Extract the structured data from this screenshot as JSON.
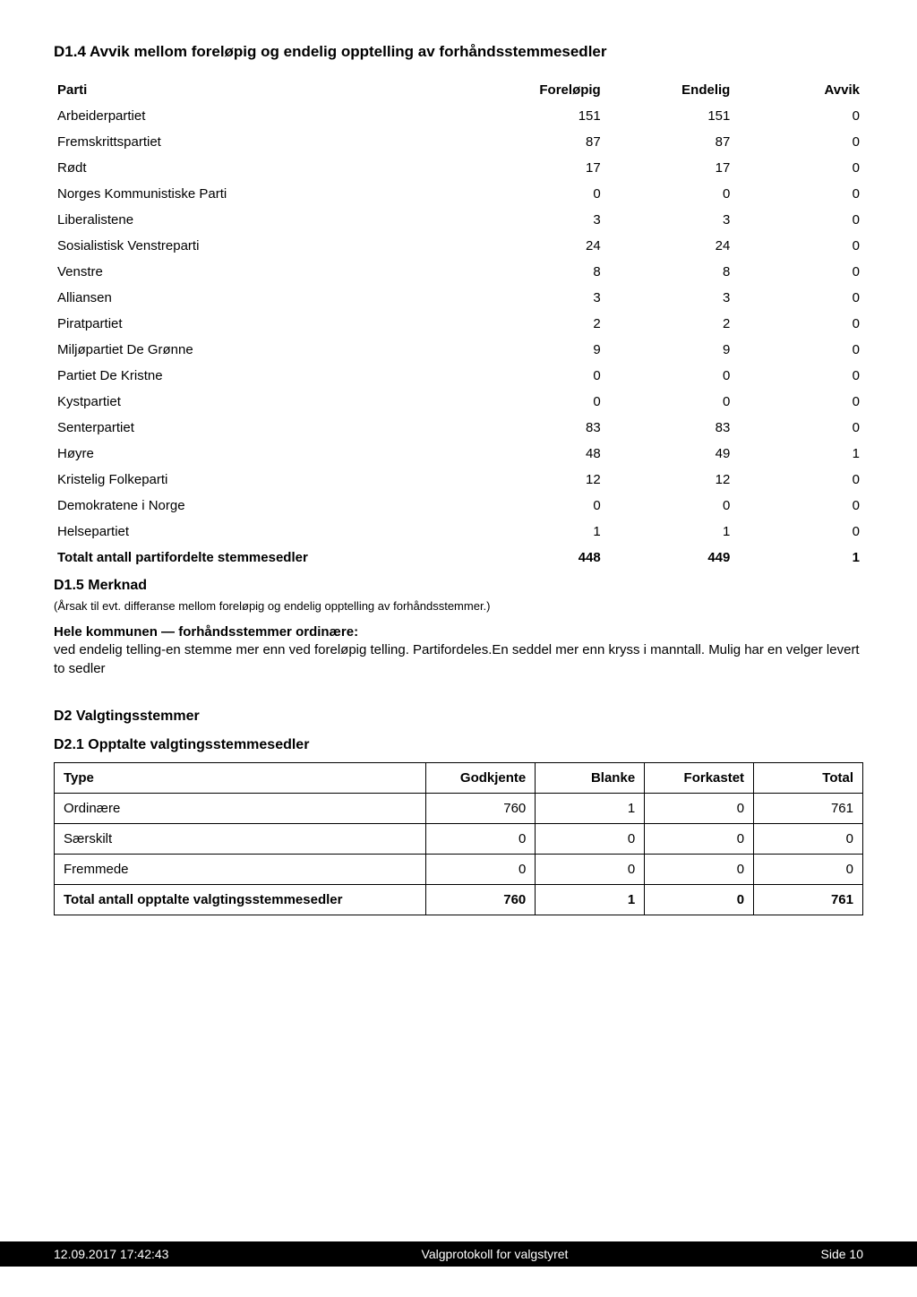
{
  "section_d14": {
    "title": "D1.4 Avvik mellom foreløpig og endelig opptelling av forhåndsstemmesedler",
    "columns": [
      "Parti",
      "Foreløpig",
      "Endelig",
      "Avvik"
    ],
    "rows": [
      {
        "party": "Arbeiderpartiet",
        "forelopig": "151",
        "endelig": "151",
        "avvik": "0"
      },
      {
        "party": "Fremskrittspartiet",
        "forelopig": "87",
        "endelig": "87",
        "avvik": "0"
      },
      {
        "party": "Rødt",
        "forelopig": "17",
        "endelig": "17",
        "avvik": "0"
      },
      {
        "party": "Norges Kommunistiske Parti",
        "forelopig": "0",
        "endelig": "0",
        "avvik": "0"
      },
      {
        "party": "Liberalistene",
        "forelopig": "3",
        "endelig": "3",
        "avvik": "0"
      },
      {
        "party": "Sosialistisk Venstreparti",
        "forelopig": "24",
        "endelig": "24",
        "avvik": "0"
      },
      {
        "party": "Venstre",
        "forelopig": "8",
        "endelig": "8",
        "avvik": "0"
      },
      {
        "party": "Alliansen",
        "forelopig": "3",
        "endelig": "3",
        "avvik": "0"
      },
      {
        "party": "Piratpartiet",
        "forelopig": "2",
        "endelig": "2",
        "avvik": "0"
      },
      {
        "party": "Miljøpartiet De Grønne",
        "forelopig": "9",
        "endelig": "9",
        "avvik": "0"
      },
      {
        "party": "Partiet De Kristne",
        "forelopig": "0",
        "endelig": "0",
        "avvik": "0"
      },
      {
        "party": "Kystpartiet",
        "forelopig": "0",
        "endelig": "0",
        "avvik": "0"
      },
      {
        "party": "Senterpartiet",
        "forelopig": "83",
        "endelig": "83",
        "avvik": "0"
      },
      {
        "party": "Høyre",
        "forelopig": "48",
        "endelig": "49",
        "avvik": "1"
      },
      {
        "party": "Kristelig Folkeparti",
        "forelopig": "12",
        "endelig": "12",
        "avvik": "0"
      },
      {
        "party": "Demokratene i Norge",
        "forelopig": "0",
        "endelig": "0",
        "avvik": "0"
      },
      {
        "party": "Helsepartiet",
        "forelopig": "1",
        "endelig": "1",
        "avvik": "0"
      }
    ],
    "total": {
      "label": "Totalt antall partifordelte stemmesedler",
      "forelopig": "448",
      "endelig": "449",
      "avvik": "1"
    }
  },
  "section_d15": {
    "title": "D1.5 Merknad",
    "note": "(Årsak til evt. differanse mellom foreløpig og endelig opptelling av forhåndsstemmer.)",
    "body_strong": "Hele kommunen — forhåndsstemmer ordinære:",
    "body_rest": "ved endelig telling-en stemme mer enn ved foreløpig telling. Partifordeles.En seddel mer enn kryss i manntall. Mulig har en velger levert to sedler"
  },
  "section_d2": {
    "title": "D2 Valgtingsstemmer"
  },
  "section_d21": {
    "title": "D2.1 Opptalte valgtingsstemmesedler",
    "columns": [
      "Type",
      "Godkjente",
      "Blanke",
      "Forkastet",
      "Total"
    ],
    "rows": [
      {
        "type": "Ordinære",
        "godkjente": "760",
        "blanke": "1",
        "forkastet": "0",
        "total": "761"
      },
      {
        "type": "Særskilt",
        "godkjente": "0",
        "blanke": "0",
        "forkastet": "0",
        "total": "0"
      },
      {
        "type": "Fremmede",
        "godkjente": "0",
        "blanke": "0",
        "forkastet": "0",
        "total": "0"
      }
    ],
    "total": {
      "label": "Total antall opptalte valgtingsstemmesedler",
      "godkjente": "760",
      "blanke": "1",
      "forkastet": "0",
      "total": "761"
    }
  },
  "footer": {
    "left": "12.09.2017 17:42:43",
    "center": "Valgprotokoll for valgstyret",
    "right": "Side 10"
  }
}
